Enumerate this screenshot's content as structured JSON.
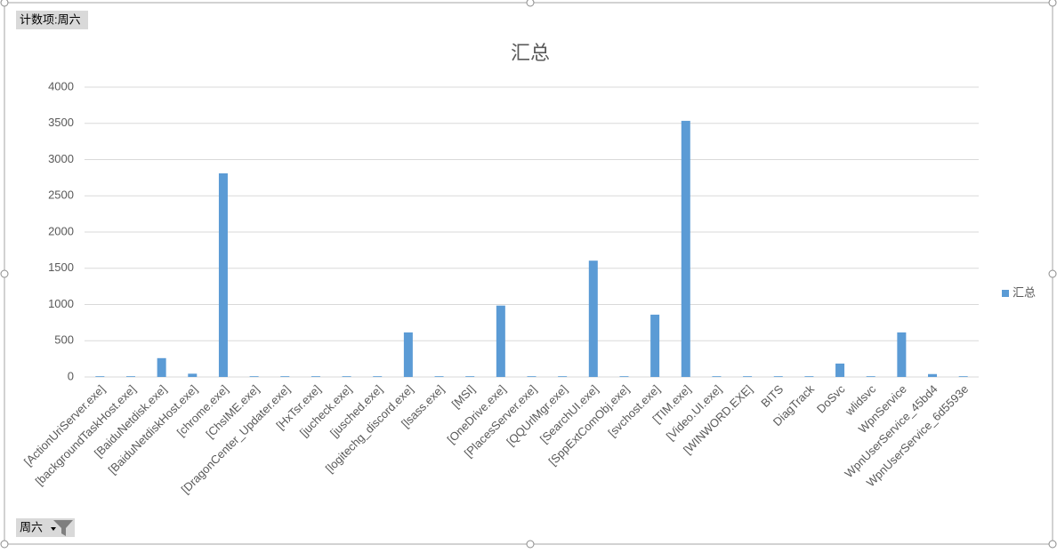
{
  "chart_data": {
    "type": "bar",
    "title": "汇总",
    "value_field_button": "计数项:周六",
    "axis_field_button": "周六",
    "categories": [
      "[ActionUriServer.exe]",
      "[backgroundTaskHost.exe]",
      "[BaiduNetdisk.exe]",
      "[BaiduNetdiskHost.exe]",
      "[chrome.exe]",
      "[ChsIME.exe]",
      "[DragonCenter_Updater.exe]",
      "[HxTsr.exe]",
      "[jucheck.exe]",
      "[jusched.exe]",
      "[logitechg_discord.exe]",
      "[lsass.exe]",
      "[MSI]",
      "[OneDrive.exe]",
      "[PlacesServer.exe]",
      "[QQUrlMgr.exe]",
      "[SearchUI.exe]",
      "[SppExtComObj.exe]",
      "[svchost.exe]",
      "[TIM.exe]",
      "[Video.UI.exe]",
      "[WINWORD.EXE]",
      "BITS",
      "DiagTrack",
      "DoSvc",
      "wlidsvc",
      "WpnService",
      "WpnUserService_45bd4",
      "WpnUserService_6d5593e"
    ],
    "series": [
      {
        "name": "汇总",
        "color": "#5b9bd5",
        "values": [
          10,
          10,
          260,
          45,
          2810,
          10,
          10,
          10,
          10,
          10,
          615,
          10,
          10,
          985,
          10,
          10,
          1605,
          10,
          860,
          3535,
          10,
          10,
          10,
          10,
          185,
          10,
          615,
          40,
          10
        ]
      }
    ],
    "ylim": [
      0,
      4000
    ],
    "yticks": [
      0,
      500,
      1000,
      1500,
      2000,
      2500,
      3000,
      3500,
      4000
    ],
    "grid": true,
    "legend": "right"
  }
}
